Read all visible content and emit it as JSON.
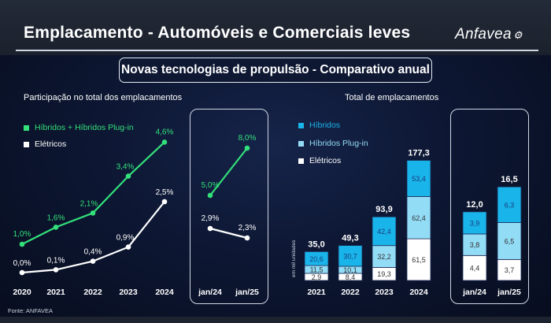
{
  "header": {
    "title": "Emplacamento - Automóveis e Comerciais leves",
    "brand": "Anfavea",
    "brand_mark": "⚙"
  },
  "subtitle": "Novas tecnologias de propulsão - Comparativo anual",
  "source": "Fonte: ANFAVEA",
  "colors": {
    "hybrid_green": "#33e07a",
    "electric_white": "#ffffff",
    "hibridos": "#19b4ea",
    "plugin": "#93dcf6",
    "eletricos": "#ffffff"
  },
  "chart_data": [
    {
      "type": "line",
      "title": "Participação no total dos emplacamentos",
      "categories": [
        "2020",
        "2021",
        "2022",
        "2023",
        "2024"
      ],
      "series": [
        {
          "name": "Híbridos + Híbridos Plug-in",
          "values": [
            1.0,
            1.6,
            2.1,
            3.4,
            4.6
          ],
          "labels": [
            "1,0%",
            "1,6%",
            "2,1%",
            "3,4%",
            "4,6%"
          ]
        },
        {
          "name": "Elétricos",
          "values": [
            0.0,
            0.1,
            0.4,
            0.9,
            2.5
          ],
          "labels": [
            "0,0%",
            "0,1%",
            "0,4%",
            "0,9%",
            "2,5%"
          ]
        }
      ],
      "ylim": [
        0,
        5
      ]
    },
    {
      "type": "line",
      "categories": [
        "jan/24",
        "jan/25"
      ],
      "series": [
        {
          "name": "Híbridos + Híbridos Plug-in",
          "values": [
            5.0,
            8.0
          ],
          "labels": [
            "5,0%",
            "8,0%"
          ]
        },
        {
          "name": "Elétricos",
          "values": [
            2.9,
            2.3
          ],
          "labels": [
            "2,9%",
            "2,3%"
          ]
        }
      ],
      "ylim": [
        0,
        9
      ]
    },
    {
      "type": "bar",
      "stacked": true,
      "title": "Total de emplacamentos",
      "ylabel": "em mil unidades",
      "categories": [
        "2021",
        "2022",
        "2023",
        "2024"
      ],
      "series": [
        {
          "name": "Elétricos",
          "values": [
            2.9,
            8.4,
            19.3,
            61.5
          ],
          "labels": [
            "2,9",
            "8,4",
            "19,3",
            "61,5"
          ]
        },
        {
          "name": "Híbridos Plug-in",
          "values": [
            11.5,
            10.1,
            32.2,
            62.4
          ],
          "labels": [
            "11,5",
            "10,1",
            "32,2",
            "62,4"
          ]
        },
        {
          "name": "Híbridos",
          "values": [
            20.6,
            30.7,
            42.4,
            53.4
          ],
          "labels": [
            "20,6",
            "30,7",
            "42,4",
            "53,4"
          ]
        }
      ],
      "totals": [
        35.0,
        49.3,
        93.9,
        177.3
      ],
      "total_labels": [
        "35,0",
        "49,3",
        "93,9",
        "177,3"
      ],
      "ylim": [
        0,
        180
      ]
    },
    {
      "type": "bar",
      "stacked": true,
      "categories": [
        "jan/24",
        "jan/25"
      ],
      "series": [
        {
          "name": "Elétricos",
          "values": [
            4.4,
            3.7
          ],
          "labels": [
            "4,4",
            "3,7"
          ]
        },
        {
          "name": "Híbridos Plug-in",
          "values": [
            3.8,
            6.5
          ],
          "labels": [
            "3,8",
            "6,5"
          ]
        },
        {
          "name": "Híbridos",
          "values": [
            3.9,
            6.3
          ],
          "labels": [
            "3,9",
            "6,3"
          ]
        }
      ],
      "totals": [
        12.0,
        16.5
      ],
      "total_labels": [
        "12,0",
        "16,5"
      ],
      "ylim": [
        0,
        18
      ]
    }
  ],
  "legend_left": [
    {
      "name": "Híbridos + Híbridos Plug-in"
    },
    {
      "name": "Elétricos"
    }
  ],
  "legend_right": [
    {
      "name": "Híbridos"
    },
    {
      "name": "Híbridos Plug-in"
    },
    {
      "name": "Elétricos"
    }
  ]
}
